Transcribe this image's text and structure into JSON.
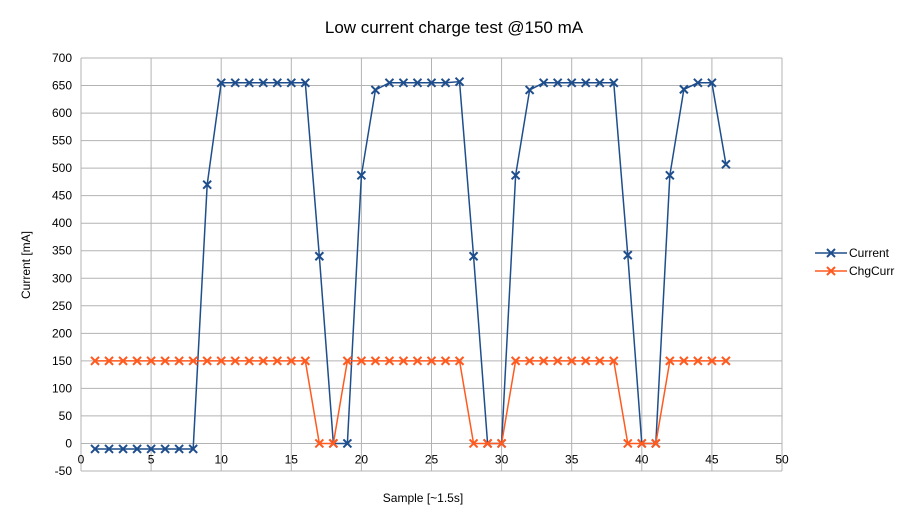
{
  "chart_data": {
    "type": "line",
    "title": "Low current charge test @150 mA",
    "xlabel": "Sample [~1.5s]",
    "ylabel": "Current [mA]",
    "xlim": [
      0,
      50
    ],
    "ylim": [
      -50,
      700
    ],
    "x_ticks": [
      0,
      5,
      10,
      15,
      20,
      25,
      30,
      35,
      40,
      45,
      50
    ],
    "y_ticks": [
      -50,
      0,
      50,
      100,
      150,
      200,
      250,
      300,
      350,
      400,
      450,
      500,
      550,
      600,
      650,
      700
    ],
    "grid": true,
    "legend_position": "right",
    "marker": "x",
    "x": [
      1,
      2,
      3,
      4,
      5,
      6,
      7,
      8,
      9,
      10,
      11,
      12,
      13,
      14,
      15,
      16,
      17,
      18,
      19,
      20,
      21,
      22,
      23,
      24,
      25,
      26,
      27,
      28,
      29,
      30,
      31,
      32,
      33,
      34,
      35,
      36,
      37,
      38,
      39,
      40,
      41,
      42,
      43,
      44,
      45,
      46
    ],
    "series": [
      {
        "name": "Current",
        "color": "#1f4e8c",
        "values": [
          -10,
          -10,
          -10,
          -10,
          -10,
          -10,
          -10,
          -10,
          470,
          655,
          655,
          655,
          655,
          655,
          655,
          655,
          340,
          0,
          0,
          487,
          642,
          655,
          655,
          655,
          655,
          655,
          657,
          340,
          0,
          0,
          487,
          642,
          655,
          655,
          655,
          655,
          655,
          655,
          342,
          0,
          0,
          487,
          643,
          655,
          655,
          507
        ]
      },
      {
        "name": "ChgCurr",
        "color": "#ff5a1f",
        "values": [
          150,
          150,
          150,
          150,
          150,
          150,
          150,
          150,
          150,
          150,
          150,
          150,
          150,
          150,
          150,
          150,
          0,
          0,
          150,
          150,
          150,
          150,
          150,
          150,
          150,
          150,
          150,
          0,
          0,
          0,
          150,
          150,
          150,
          150,
          150,
          150,
          150,
          150,
          0,
          0,
          0,
          150,
          150,
          150,
          150,
          150
        ]
      }
    ]
  }
}
